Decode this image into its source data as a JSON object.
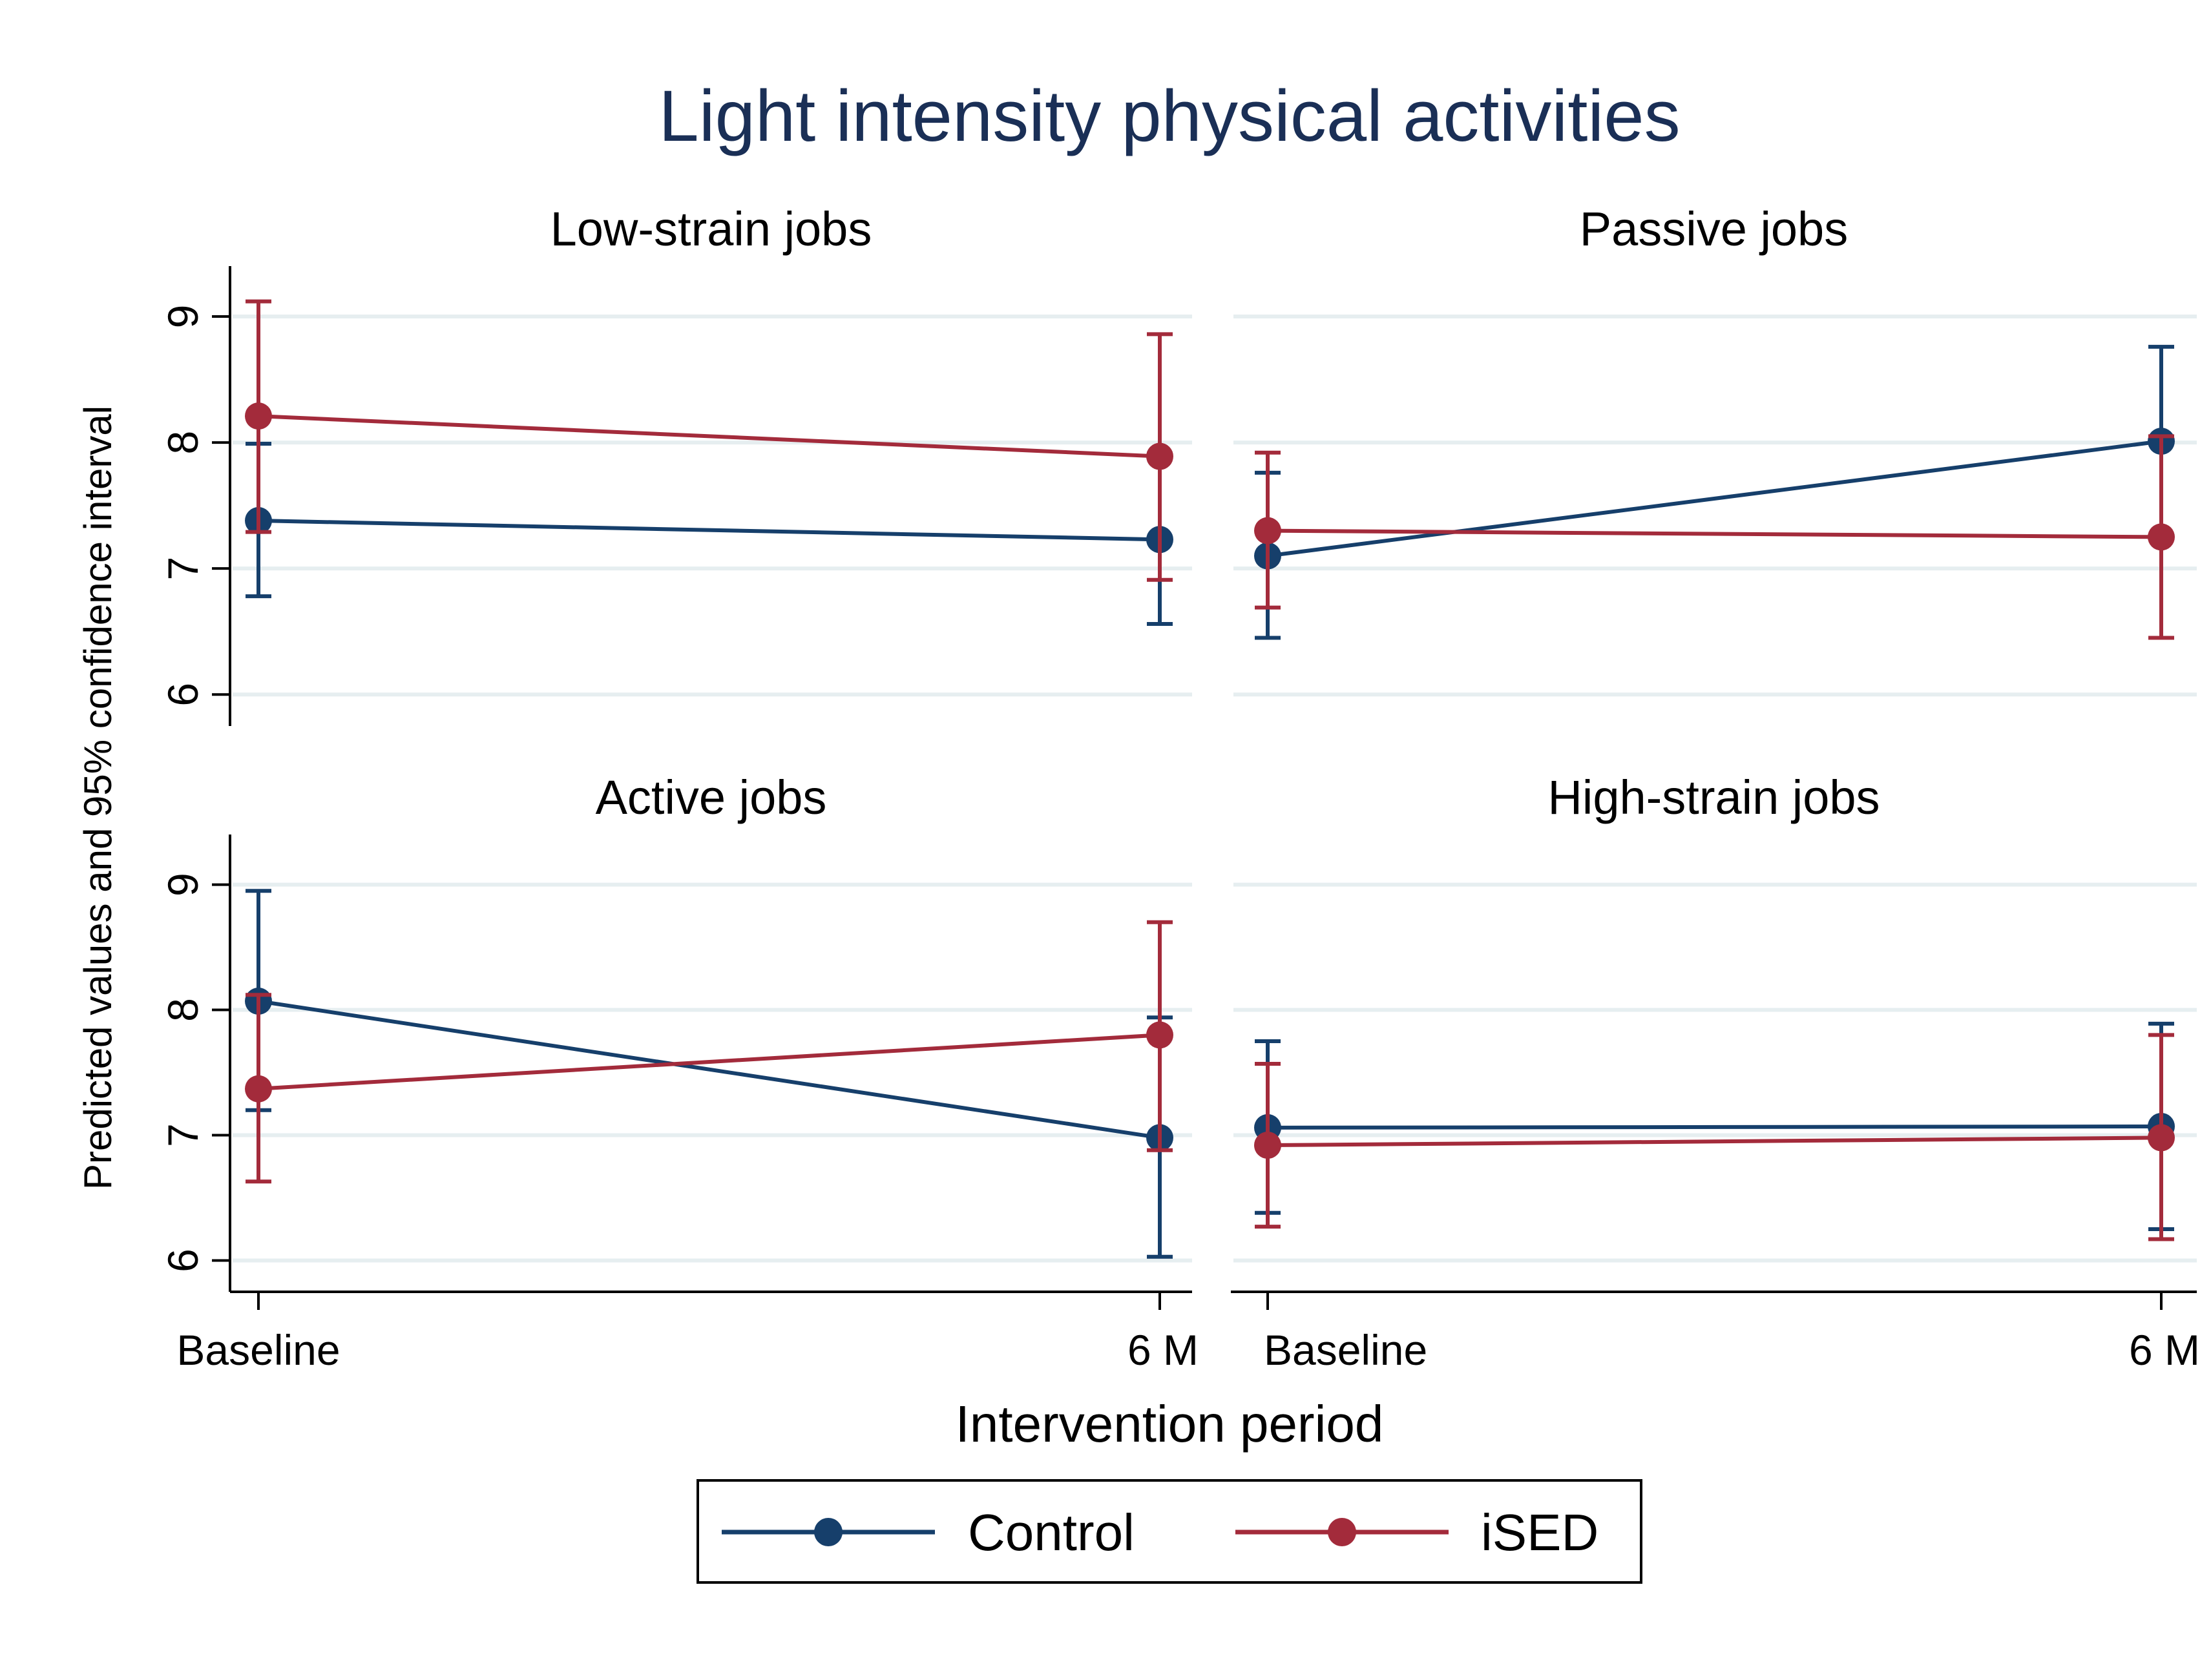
{
  "title": "Light intensity physical activities",
  "ylabel": "Predicted values and 95% confidence interval",
  "xlabel": "Intervention period",
  "legend": {
    "position": "bottom-center",
    "entries": [
      {
        "name": "Control",
        "color": "#163f6b"
      },
      {
        "name": "iSED",
        "color": "#a32b3b"
      }
    ]
  },
  "chart_data": {
    "type": "line",
    "categories": [
      "Baseline",
      "6 M"
    ],
    "yticks": [
      6,
      7,
      8,
      9
    ],
    "ylim": [
      5.75,
      9.4
    ],
    "grid": true,
    "panels": [
      {
        "title": "Low-strain jobs",
        "series": [
          {
            "name": "Control",
            "values": [
              7.38,
              7.23
            ],
            "lower": [
              6.78,
              6.56
            ],
            "upper": [
              7.99,
              7.91
            ]
          },
          {
            "name": "iSED",
            "values": [
              8.21,
              7.89
            ],
            "lower": [
              7.29,
              6.91
            ],
            "upper": [
              9.12,
              8.86
            ]
          }
        ]
      },
      {
        "title": "Passive jobs",
        "series": [
          {
            "name": "Control",
            "values": [
              7.1,
              8.01
            ],
            "lower": [
              6.45,
              7.26
            ],
            "upper": [
              7.76,
              8.76
            ]
          },
          {
            "name": "iSED",
            "values": [
              7.3,
              7.25
            ],
            "lower": [
              6.69,
              6.45
            ],
            "upper": [
              7.92,
              8.05
            ]
          }
        ]
      },
      {
        "title": "Active jobs",
        "series": [
          {
            "name": "Control",
            "values": [
              8.07,
              6.98
            ],
            "lower": [
              7.2,
              6.03
            ],
            "upper": [
              8.95,
              7.94
            ]
          },
          {
            "name": "iSED",
            "values": [
              7.37,
              7.8
            ],
            "lower": [
              6.63,
              6.88
            ],
            "upper": [
              8.12,
              8.7
            ]
          }
        ]
      },
      {
        "title": "High-strain jobs",
        "series": [
          {
            "name": "Control",
            "values": [
              7.06,
              7.07
            ],
            "lower": [
              6.38,
              6.25
            ],
            "upper": [
              7.75,
              7.89
            ]
          },
          {
            "name": "iSED",
            "values": [
              6.92,
              6.98
            ],
            "lower": [
              6.27,
              6.17
            ],
            "upper": [
              7.57,
              7.8
            ]
          }
        ]
      }
    ]
  }
}
